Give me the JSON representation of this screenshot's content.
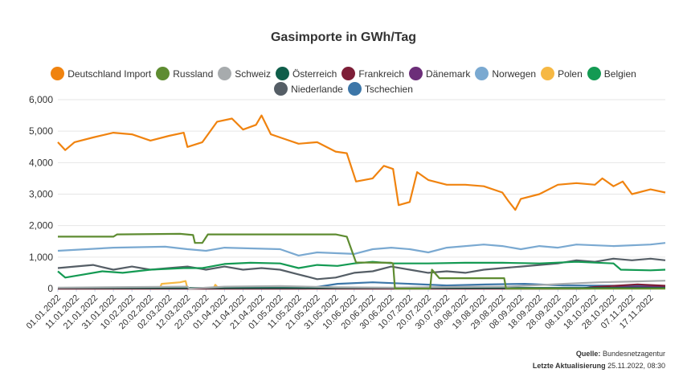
{
  "chart_data": {
    "type": "line",
    "title": "Gasimporte in GWh/Tag",
    "ylim": [
      0,
      6000
    ],
    "yticks": [
      "0",
      "1,000",
      "2,000",
      "3,000",
      "4,000",
      "5,000",
      "6,000"
    ],
    "xlim": [
      "2022-01-01",
      "2022-11-25"
    ],
    "x_tick_labels": [
      "01.01.2022",
      "11.01.2022",
      "21.01.2022",
      "31.01.2022",
      "10.02.2022",
      "20.02.2022",
      "02.03.2022",
      "12.03.2022",
      "22.03.2022",
      "01.04.2022",
      "11.04.2022",
      "21.04.2022",
      "01.05.2022",
      "11.05.2022",
      "21.05.2022",
      "31.05.2022",
      "10.06.2022",
      "20.06.2022",
      "30.06.2022",
      "10.07.2022",
      "20.07.2022",
      "30.07.2022",
      "09.08.2022",
      "19.08.2022",
      "29.08.2022",
      "08.09.2022",
      "18.09.2022",
      "28.09.2022",
      "08.10.2022",
      "18.10.2022",
      "28.10.2022",
      "07.11.2022",
      "17.11.2022"
    ],
    "grid": "horizontal",
    "legend_position": "top",
    "series": [
      {
        "name": "Deutschland Import",
        "color": "#f0830f",
        "points": [
          [
            "2022-01-01",
            4650
          ],
          [
            "2022-01-05",
            4400
          ],
          [
            "2022-01-10",
            4650
          ],
          [
            "2022-01-20",
            4800
          ],
          [
            "2022-01-31",
            4950
          ],
          [
            "2022-02-10",
            4900
          ],
          [
            "2022-02-20",
            4700
          ],
          [
            "2022-03-02",
            4850
          ],
          [
            "2022-03-10",
            4950
          ],
          [
            "2022-03-12",
            4500
          ],
          [
            "2022-03-20",
            4650
          ],
          [
            "2022-03-28",
            5300
          ],
          [
            "2022-04-05",
            5400
          ],
          [
            "2022-04-11",
            5050
          ],
          [
            "2022-04-18",
            5200
          ],
          [
            "2022-04-21",
            5500
          ],
          [
            "2022-04-26",
            4900
          ],
          [
            "2022-05-01",
            4800
          ],
          [
            "2022-05-11",
            4600
          ],
          [
            "2022-05-21",
            4650
          ],
          [
            "2022-05-31",
            4350
          ],
          [
            "2022-06-06",
            4300
          ],
          [
            "2022-06-11",
            3400
          ],
          [
            "2022-06-20",
            3500
          ],
          [
            "2022-06-26",
            3900
          ],
          [
            "2022-07-01",
            3800
          ],
          [
            "2022-07-04",
            2650
          ],
          [
            "2022-07-10",
            2750
          ],
          [
            "2022-07-14",
            3700
          ],
          [
            "2022-07-20",
            3450
          ],
          [
            "2022-07-30",
            3300
          ],
          [
            "2022-08-09",
            3300
          ],
          [
            "2022-08-19",
            3250
          ],
          [
            "2022-08-29",
            3050
          ],
          [
            "2022-09-01",
            2800
          ],
          [
            "2022-09-05",
            2500
          ],
          [
            "2022-09-08",
            2850
          ],
          [
            "2022-09-18",
            3000
          ],
          [
            "2022-09-28",
            3300
          ],
          [
            "2022-10-08",
            3350
          ],
          [
            "2022-10-18",
            3300
          ],
          [
            "2022-10-22",
            3500
          ],
          [
            "2022-10-28",
            3250
          ],
          [
            "2022-11-02",
            3400
          ],
          [
            "2022-11-07",
            3000
          ],
          [
            "2022-11-17",
            3150
          ],
          [
            "2022-11-25",
            3050
          ]
        ]
      },
      {
        "name": "Russland",
        "color": "#5e8c31",
        "points": [
          [
            "2022-01-01",
            1650
          ],
          [
            "2022-01-31",
            1650
          ],
          [
            "2022-02-02",
            1720
          ],
          [
            "2022-03-08",
            1740
          ],
          [
            "2022-03-15",
            1700
          ],
          [
            "2022-03-16",
            1450
          ],
          [
            "2022-03-20",
            1450
          ],
          [
            "2022-03-23",
            1720
          ],
          [
            "2022-05-31",
            1720
          ],
          [
            "2022-06-06",
            1650
          ],
          [
            "2022-06-11",
            830
          ],
          [
            "2022-06-30",
            820
          ],
          [
            "2022-07-01",
            800
          ],
          [
            "2022-07-02",
            0
          ],
          [
            "2022-07-10",
            0
          ],
          [
            "2022-07-21",
            0
          ],
          [
            "2022-07-22",
            600
          ],
          [
            "2022-07-26",
            330
          ],
          [
            "2022-08-30",
            330
          ],
          [
            "2022-08-31",
            0
          ],
          [
            "2022-11-25",
            0
          ]
        ]
      },
      {
        "name": "Schweiz",
        "color": "#a7abad",
        "points": [
          [
            "2022-01-01",
            30
          ],
          [
            "2022-03-12",
            60
          ],
          [
            "2022-03-13",
            0
          ],
          [
            "2022-04-01",
            60
          ],
          [
            "2022-05-01",
            80
          ],
          [
            "2022-06-01",
            40
          ],
          [
            "2022-07-01",
            30
          ],
          [
            "2022-08-01",
            50
          ],
          [
            "2022-09-01",
            60
          ],
          [
            "2022-10-01",
            150
          ],
          [
            "2022-10-20",
            200
          ],
          [
            "2022-11-05",
            220
          ],
          [
            "2022-11-25",
            250
          ]
        ]
      },
      {
        "name": "Österreich",
        "color": "#0f5e4a",
        "points": [
          [
            "2022-01-01",
            20
          ],
          [
            "2022-11-25",
            20
          ]
        ]
      },
      {
        "name": "Frankreich",
        "color": "#7d1e37",
        "points": [
          [
            "2022-01-01",
            0
          ],
          [
            "2022-10-10",
            0
          ],
          [
            "2022-10-18",
            50
          ],
          [
            "2022-11-01",
            100
          ],
          [
            "2022-11-10",
            130
          ],
          [
            "2022-11-25",
            90
          ]
        ]
      },
      {
        "name": "Dänemark",
        "color": "#6c2e79",
        "points": [
          [
            "2022-01-01",
            0
          ],
          [
            "2022-10-15",
            0
          ],
          [
            "2022-11-01",
            40
          ],
          [
            "2022-11-25",
            60
          ]
        ]
      },
      {
        "name": "Norwegen",
        "color": "#7aa9d1",
        "points": [
          [
            "2022-01-01",
            1200
          ],
          [
            "2022-01-31",
            1300
          ],
          [
            "2022-02-28",
            1330
          ],
          [
            "2022-03-12",
            1250
          ],
          [
            "2022-03-22",
            1200
          ],
          [
            "2022-04-01",
            1300
          ],
          [
            "2022-05-01",
            1250
          ],
          [
            "2022-05-11",
            1050
          ],
          [
            "2022-05-21",
            1150
          ],
          [
            "2022-06-10",
            1100
          ],
          [
            "2022-06-20",
            1250
          ],
          [
            "2022-06-30",
            1300
          ],
          [
            "2022-07-10",
            1250
          ],
          [
            "2022-07-20",
            1150
          ],
          [
            "2022-07-30",
            1300
          ],
          [
            "2022-08-19",
            1400
          ],
          [
            "2022-08-29",
            1350
          ],
          [
            "2022-09-08",
            1250
          ],
          [
            "2022-09-18",
            1350
          ],
          [
            "2022-09-28",
            1300
          ],
          [
            "2022-10-08",
            1400
          ],
          [
            "2022-10-28",
            1350
          ],
          [
            "2022-11-17",
            1400
          ],
          [
            "2022-11-25",
            1450
          ]
        ]
      },
      {
        "name": "Polen",
        "color": "#f6b843",
        "points": [
          [
            "2022-01-01",
            0
          ],
          [
            "2022-02-25",
            0
          ],
          [
            "2022-02-26",
            150
          ],
          [
            "2022-03-08",
            200
          ],
          [
            "2022-03-11",
            240
          ],
          [
            "2022-03-12",
            0
          ],
          [
            "2022-03-26",
            0
          ],
          [
            "2022-03-27",
            120
          ],
          [
            "2022-03-29",
            0
          ],
          [
            "2022-11-25",
            0
          ]
        ]
      },
      {
        "name": "Belgien",
        "color": "#149a53",
        "points": [
          [
            "2022-01-01",
            550
          ],
          [
            "2022-01-05",
            350
          ],
          [
            "2022-01-15",
            450
          ],
          [
            "2022-01-25",
            550
          ],
          [
            "2022-02-05",
            500
          ],
          [
            "2022-02-20",
            600
          ],
          [
            "2022-03-10",
            650
          ],
          [
            "2022-03-20",
            650
          ],
          [
            "2022-04-01",
            780
          ],
          [
            "2022-04-15",
            820
          ],
          [
            "2022-05-01",
            800
          ],
          [
            "2022-05-11",
            650
          ],
          [
            "2022-05-21",
            750
          ],
          [
            "2022-06-01",
            720
          ],
          [
            "2022-06-10",
            800
          ],
          [
            "2022-06-20",
            850
          ],
          [
            "2022-07-01",
            800
          ],
          [
            "2022-07-20",
            800
          ],
          [
            "2022-08-09",
            820
          ],
          [
            "2022-08-29",
            820
          ],
          [
            "2022-09-18",
            800
          ],
          [
            "2022-10-08",
            850
          ],
          [
            "2022-10-28",
            800
          ],
          [
            "2022-11-01",
            600
          ],
          [
            "2022-11-17",
            580
          ],
          [
            "2022-11-25",
            600
          ]
        ]
      },
      {
        "name": "Niederlande",
        "color": "#555e66",
        "points": [
          [
            "2022-01-01",
            650
          ],
          [
            "2022-01-10",
            700
          ],
          [
            "2022-01-20",
            750
          ],
          [
            "2022-01-31",
            600
          ],
          [
            "2022-02-10",
            700
          ],
          [
            "2022-02-20",
            600
          ],
          [
            "2022-03-02",
            650
          ],
          [
            "2022-03-12",
            700
          ],
          [
            "2022-03-22",
            600
          ],
          [
            "2022-04-01",
            700
          ],
          [
            "2022-04-11",
            600
          ],
          [
            "2022-04-21",
            650
          ],
          [
            "2022-05-01",
            600
          ],
          [
            "2022-05-11",
            450
          ],
          [
            "2022-05-21",
            300
          ],
          [
            "2022-05-31",
            350
          ],
          [
            "2022-06-10",
            500
          ],
          [
            "2022-06-20",
            550
          ],
          [
            "2022-06-30",
            700
          ],
          [
            "2022-07-10",
            600
          ],
          [
            "2022-07-20",
            500
          ],
          [
            "2022-07-30",
            550
          ],
          [
            "2022-08-09",
            500
          ],
          [
            "2022-08-19",
            600
          ],
          [
            "2022-08-29",
            650
          ],
          [
            "2022-09-08",
            700
          ],
          [
            "2022-09-18",
            750
          ],
          [
            "2022-09-28",
            800
          ],
          [
            "2022-10-08",
            900
          ],
          [
            "2022-10-18",
            850
          ],
          [
            "2022-10-28",
            950
          ],
          [
            "2022-11-07",
            900
          ],
          [
            "2022-11-17",
            950
          ],
          [
            "2022-11-25",
            900
          ]
        ]
      },
      {
        "name": "Tschechien",
        "color": "#3c76a8",
        "points": [
          [
            "2022-01-01",
            0
          ],
          [
            "2022-05-15",
            0
          ],
          [
            "2022-06-01",
            150
          ],
          [
            "2022-06-20",
            200
          ],
          [
            "2022-07-10",
            150
          ],
          [
            "2022-07-30",
            100
          ],
          [
            "2022-08-20",
            130
          ],
          [
            "2022-09-10",
            150
          ],
          [
            "2022-10-01",
            100
          ],
          [
            "2022-11-25",
            80
          ]
        ]
      }
    ],
    "source_label": "Quelle:",
    "source_value": "Bundesnetzagentur",
    "updated_label": "Letzte Aktualisierung",
    "updated_value": "25.11.2022, 08:30"
  }
}
